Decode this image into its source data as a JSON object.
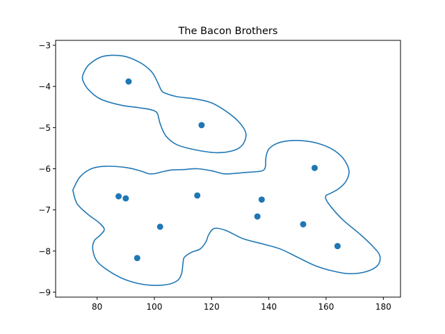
{
  "chart_data": {
    "type": "scatter",
    "title": "The Bacon Brothers",
    "xlabel": "",
    "ylabel": "",
    "xlim": [
      65.5,
      186
    ],
    "ylim": [
      -9.12,
      -2.88
    ],
    "xticks": [
      80,
      100,
      120,
      140,
      160,
      180
    ],
    "yticks": [
      -9,
      -8,
      -7,
      -6,
      -5,
      -4,
      -3
    ],
    "xtick_labels": [
      "80",
      "100",
      "120",
      "140",
      "160",
      "180"
    ],
    "ytick_labels": [
      "−9",
      "−8",
      "−7",
      "−6",
      "−5",
      "−4",
      "−3"
    ],
    "grid": false,
    "color": "#1f77b4",
    "points": [
      {
        "x": 91,
        "y": -3.88
      },
      {
        "x": 116.5,
        "y": -4.94
      },
      {
        "x": 87.5,
        "y": -6.67
      },
      {
        "x": 90,
        "y": -6.72
      },
      {
        "x": 102,
        "y": -7.41
      },
      {
        "x": 94,
        "y": -8.17
      },
      {
        "x": 115,
        "y": -6.65
      },
      {
        "x": 136,
        "y": -7.16
      },
      {
        "x": 137.5,
        "y": -6.75
      },
      {
        "x": 152,
        "y": -7.35
      },
      {
        "x": 156,
        "y": -5.98
      },
      {
        "x": 164,
        "y": -7.88
      }
    ],
    "contours": [
      [
        [
          75,
          -3.72
        ],
        [
          77,
          -3.48
        ],
        [
          82,
          -3.27
        ],
        [
          89,
          -3.26
        ],
        [
          95,
          -3.42
        ],
        [
          99,
          -3.64
        ],
        [
          101,
          -3.88
        ],
        [
          102.5,
          -4.1
        ],
        [
          104,
          -4.17
        ],
        [
          108,
          -4.25
        ],
        [
          114,
          -4.3
        ],
        [
          120,
          -4.4
        ],
        [
          126,
          -4.65
        ],
        [
          130,
          -4.9
        ],
        [
          132,
          -5.15
        ],
        [
          131,
          -5.4
        ],
        [
          128,
          -5.55
        ],
        [
          122,
          -5.61
        ],
        [
          115,
          -5.55
        ],
        [
          108,
          -5.42
        ],
        [
          104,
          -5.2
        ],
        [
          102,
          -4.9
        ],
        [
          101,
          -4.65
        ],
        [
          99,
          -4.57
        ],
        [
          95,
          -4.52
        ],
        [
          88,
          -4.45
        ],
        [
          81,
          -4.3
        ],
        [
          77,
          -4.08
        ],
        [
          75,
          -3.85
        ],
        [
          75,
          -3.72
        ]
      ],
      [
        [
          71.5,
          -6.52
        ],
        [
          74,
          -6.2
        ],
        [
          78,
          -6.0
        ],
        [
          83,
          -5.94
        ],
        [
          90,
          -5.97
        ],
        [
          95,
          -6.05
        ],
        [
          98,
          -6.12
        ],
        [
          100,
          -6.12
        ],
        [
          103,
          -6.07
        ],
        [
          106,
          -6.03
        ],
        [
          110,
          -6.02
        ],
        [
          115,
          -6.0
        ],
        [
          120,
          -6.05
        ],
        [
          124,
          -6.12
        ],
        [
          127,
          -6.12
        ],
        [
          132,
          -6.09
        ],
        [
          136,
          -6.07
        ],
        [
          138,
          -6.04
        ],
        [
          138.8,
          -5.95
        ],
        [
          139,
          -5.72
        ],
        [
          140,
          -5.52
        ],
        [
          143,
          -5.38
        ],
        [
          147,
          -5.32
        ],
        [
          152,
          -5.32
        ],
        [
          157,
          -5.38
        ],
        [
          162,
          -5.52
        ],
        [
          166,
          -5.75
        ],
        [
          168,
          -6.05
        ],
        [
          167,
          -6.3
        ],
        [
          164.5,
          -6.48
        ],
        [
          161.5,
          -6.6
        ],
        [
          160,
          -6.65
        ],
        [
          160,
          -6.75
        ],
        [
          162,
          -6.95
        ],
        [
          166,
          -7.25
        ],
        [
          172,
          -7.6
        ],
        [
          176.5,
          -7.9
        ],
        [
          178.8,
          -8.12
        ],
        [
          178,
          -8.35
        ],
        [
          174,
          -8.5
        ],
        [
          168,
          -8.55
        ],
        [
          162,
          -8.48
        ],
        [
          156,
          -8.35
        ],
        [
          150,
          -8.15
        ],
        [
          144,
          -7.95
        ],
        [
          138,
          -7.83
        ],
        [
          131,
          -7.7
        ],
        [
          125,
          -7.5
        ],
        [
          121,
          -7.45
        ],
        [
          119,
          -7.6
        ],
        [
          118,
          -7.78
        ],
        [
          116,
          -7.95
        ],
        [
          113,
          -8.03
        ],
        [
          110.5,
          -8.15
        ],
        [
          110,
          -8.3
        ],
        [
          109.5,
          -8.55
        ],
        [
          108,
          -8.72
        ],
        [
          104,
          -8.82
        ],
        [
          97,
          -8.82
        ],
        [
          90,
          -8.7
        ],
        [
          84,
          -8.48
        ],
        [
          80,
          -8.25
        ],
        [
          78.5,
          -7.97
        ],
        [
          79,
          -7.75
        ],
        [
          81,
          -7.62
        ],
        [
          82.5,
          -7.47
        ],
        [
          80.5,
          -7.3
        ],
        [
          77,
          -7.12
        ],
        [
          73,
          -6.85
        ],
        [
          71.5,
          -6.52
        ]
      ]
    ]
  }
}
